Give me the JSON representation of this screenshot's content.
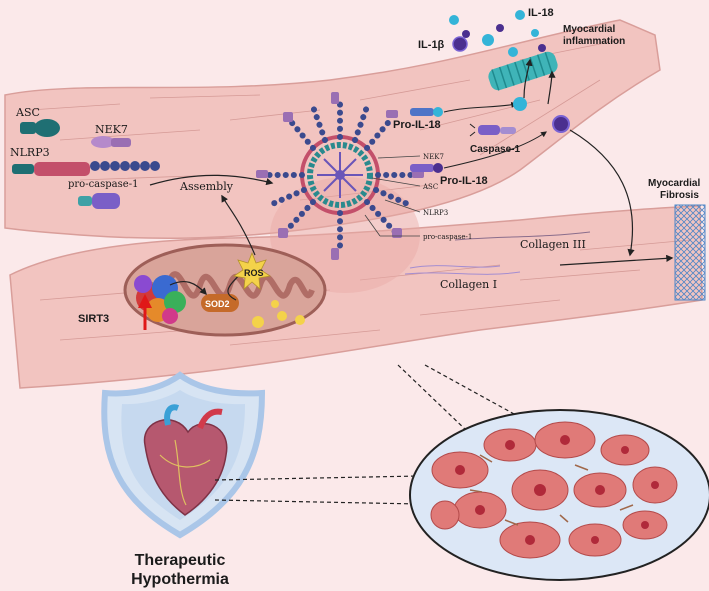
{
  "labels": {
    "asc": "ASC",
    "nek7": "NEK7",
    "nlrp3": "NLRP3",
    "pro_caspase_1": "pro-caspase-1",
    "assembly": "Assembly",
    "ros": "ROS",
    "sod2": "SOD2",
    "sirt3": "SIRT3",
    "il_18": "IL-18",
    "il_1b": "IL-1β",
    "myocardial_inflammation_line1": "Myocardial",
    "myocardial_inflammation_line2": "inflammation",
    "pro_il_18_top": "Pro-IL-18",
    "caspase_1": "Caspase-1",
    "pro_il_18_bottom": "Pro-IL-18",
    "inflammasome_nek7": "NEK7",
    "inflammasome_asc": "ASC",
    "inflammasome_nlrp3": "NLRP3",
    "inflammasome_pro_caspase_1": "pro-caspase-1",
    "myocardial_fibrosis_line1": "Myocardial",
    "myocardial_fibrosis_line2": "Fibrosis",
    "collagen_3": "Collagen III",
    "collagen_1": "Collagen I",
    "therapeutic_line1": "Therapeutic",
    "therapeutic_line2": "Hypothermia"
  },
  "colors": {
    "background": "#fbe9ea",
    "muscle_fiber": "#f2c4c0",
    "muscle_stroke": "#d99e9a",
    "nlrp3": "#c34f6a",
    "asc": "#1f6f73",
    "nek7": "#9a6fb3",
    "caspase": "#7a5fc7",
    "il18": "#34b4d8",
    "il1b": "#4b2f8f",
    "mitochondria": "#d9a49a",
    "sod2": "#c56a2a",
    "ros": "#f4d24a",
    "shield": "#aac6e8",
    "sirt3_arrow": "#e01818"
  },
  "icons": [
    "heart-icon",
    "shield-icon",
    "mitochondrion-icon",
    "inflammasome-icon",
    "tissue-cross-section-icon"
  ]
}
